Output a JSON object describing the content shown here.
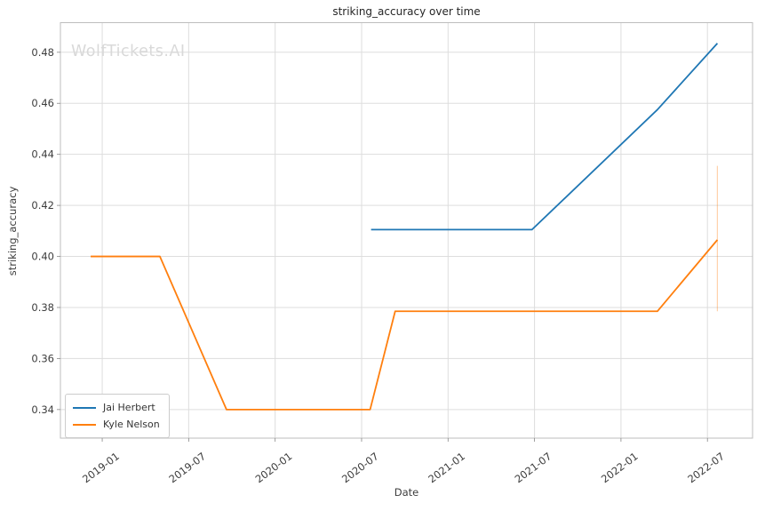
{
  "watermark": "WolfTickets.AI",
  "colors": {
    "background": "#ffffff",
    "grid": "#dddddd",
    "spine": "#bdbdbd",
    "tick": "#888888",
    "text": "#3d3d3d",
    "title_text": "#262626",
    "watermark_text": "#d9d9d9",
    "series_blue": "#1f77b4",
    "series_orange": "#ff7f0e"
  },
  "chart_data": {
    "type": "line",
    "title": "striking_accuracy over time",
    "xlabel": "Date",
    "ylabel": "striking_accuracy",
    "grid": true,
    "legend_position": "lower-left",
    "ylim": [
      0.3288,
      0.4916
    ],
    "xlim": [
      "2018-10-04",
      "2022-10-05"
    ],
    "y_ticks": [
      {
        "value": 0.34,
        "label": "0.34"
      },
      {
        "value": 0.36,
        "label": "0.36"
      },
      {
        "value": 0.38,
        "label": "0.38"
      },
      {
        "value": 0.4,
        "label": "0.40"
      },
      {
        "value": 0.42,
        "label": "0.42"
      },
      {
        "value": 0.44,
        "label": "0.44"
      },
      {
        "value": 0.46,
        "label": "0.46"
      },
      {
        "value": 0.48,
        "label": "0.48"
      }
    ],
    "x_ticks": [
      {
        "date": "2019-01",
        "label": "2019-01"
      },
      {
        "date": "2019-07",
        "label": "2019-07"
      },
      {
        "date": "2020-01",
        "label": "2020-01"
      },
      {
        "date": "2020-07",
        "label": "2020-07"
      },
      {
        "date": "2021-01",
        "label": "2021-01"
      },
      {
        "date": "2021-07",
        "label": "2021-07"
      },
      {
        "date": "2022-01",
        "label": "2022-01"
      },
      {
        "date": "2022-07",
        "label": "2022-07"
      }
    ],
    "series": [
      {
        "name": "Jai Herbert",
        "color": "#1f77b4",
        "points": [
          {
            "date": "2020-07-21",
            "value": 0.4105
          },
          {
            "date": "2021-06-26",
            "value": 0.4105
          },
          {
            "date": "2022-03-17",
            "value": 0.4575
          },
          {
            "date": "2022-07-22",
            "value": 0.4835
          }
        ]
      },
      {
        "name": "Kyle Nelson",
        "color": "#ff7f0e",
        "points": [
          {
            "date": "2018-12-07",
            "value": 0.4
          },
          {
            "date": "2019-05-01",
            "value": 0.4
          },
          {
            "date": "2019-09-20",
            "value": 0.34
          },
          {
            "date": "2020-07-19",
            "value": 0.34
          },
          {
            "date": "2020-09-11",
            "value": 0.3785
          },
          {
            "date": "2022-03-17",
            "value": 0.3785
          },
          {
            "date": "2022-07-22",
            "value": 0.4065
          }
        ]
      }
    ],
    "annotations": [
      {
        "type": "vertical-segment",
        "date": "2022-07-22",
        "from": 0.3785,
        "to": 0.4355,
        "color": "#ff7f0e",
        "opacity": 0.35
      }
    ]
  }
}
